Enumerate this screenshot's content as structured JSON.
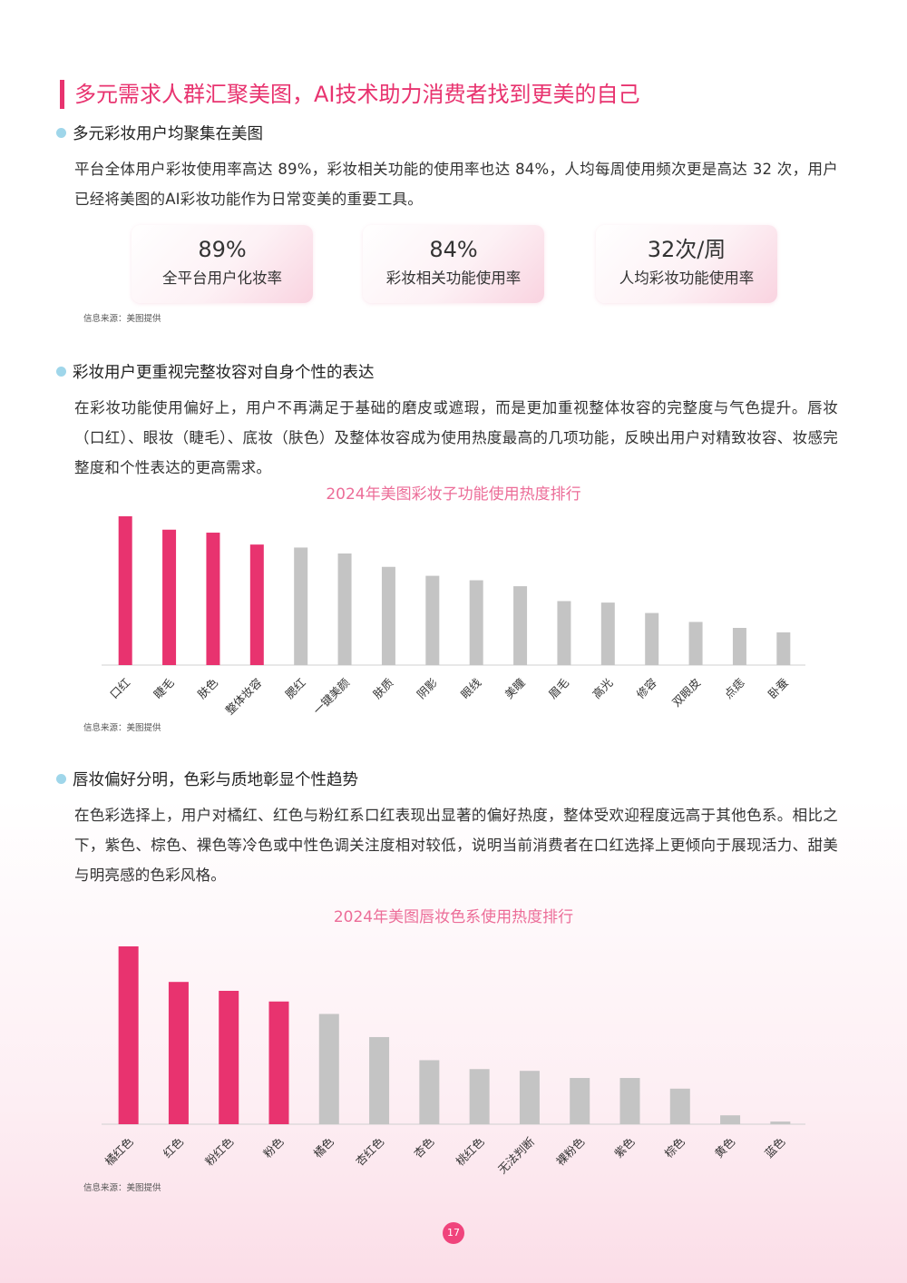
{
  "page_title": "多元需求人群汇聚美图，AI技术助力消费者找到更美的自己",
  "section1": {
    "heading": "多元彩妆用户均聚集在美图",
    "paragraph": "平台全体用户彩妆使用率高达 89%，彩妆相关功能的使用率也达 84%，人均每周使用频次更是高达 32 次，用户已经将美图的AI彩妆功能作为日常变美的重要工具。",
    "stats": [
      {
        "value": "89%",
        "label": "全平台用户化妆率"
      },
      {
        "value": "84%",
        "label": "彩妆相关功能使用率"
      },
      {
        "value": "32次/周",
        "label": "人均彩妆功能使用率"
      }
    ],
    "source": "信息来源：美图提供"
  },
  "section2": {
    "heading": "彩妆用户更重视完整妆容对自身个性的表达",
    "paragraph": "在彩妆功能使用偏好上，用户不再满足于基础的磨皮或遮瑕，而是更加重视整体妆容的完整度与气色提升。唇妆（口红）、眼妆（睫毛）、底妆（肤色）及整体妆容成为使用热度最高的几项功能，反映出用户对精致妆容、妆感完整度和个性表达的更高需求。",
    "source": "信息来源：美图提供"
  },
  "section3": {
    "heading": "唇妆偏好分明，色彩与质地彰显个性趋势",
    "paragraph": "在色彩选择上，用户对橘红、红色与粉红系口红表现出显著的偏好热度，整体受欢迎程度远高于其他色系。相比之下，紫色、棕色、裸色等冷色或中性色调关注度相对较低，说明当前消费者在口红选择上更倾向于展现活力、甜美与明亮感的色彩风格。",
    "source": "信息来源：美图提供"
  },
  "page_number": "17",
  "colors": {
    "accent": "#e8336f",
    "highlight_bar": "#e8336f",
    "muted_bar": "#c4c4c4",
    "dot": "#9fd6ea"
  },
  "chart_data": [
    {
      "type": "bar",
      "title": "2024年美图彩妆子功能使用热度排行",
      "categories": [
        "口红",
        "睫毛",
        "肤色",
        "整体妆容",
        "腮红",
        "一键美颜",
        "肤质",
        "阴影",
        "眼线",
        "美瞳",
        "眉毛",
        "高光",
        "修容",
        "双眼皮",
        "点痣",
        "卧蚕"
      ],
      "values": [
        100,
        91,
        89,
        81,
        79,
        75,
        66,
        60,
        57,
        53,
        43,
        42,
        35,
        29,
        25,
        22
      ],
      "highlight_count": 4,
      "ylim": [
        0,
        100
      ],
      "grid": false
    },
    {
      "type": "bar",
      "title": "2024年美图唇妆色系使用热度排行",
      "categories": [
        "橘红色",
        "红色",
        "粉红色",
        "粉色",
        "橘色",
        "杏红色",
        "杏色",
        "桃红色",
        "无法判断",
        "裸粉色",
        "紫色",
        "棕色",
        "黄色",
        "蓝色"
      ],
      "values": [
        100,
        80,
        75,
        69,
        62,
        49,
        36,
        31,
        30,
        26,
        26,
        20,
        5,
        1.5
      ],
      "highlight_count": 4,
      "ylim": [
        0,
        100
      ],
      "grid": false
    }
  ]
}
